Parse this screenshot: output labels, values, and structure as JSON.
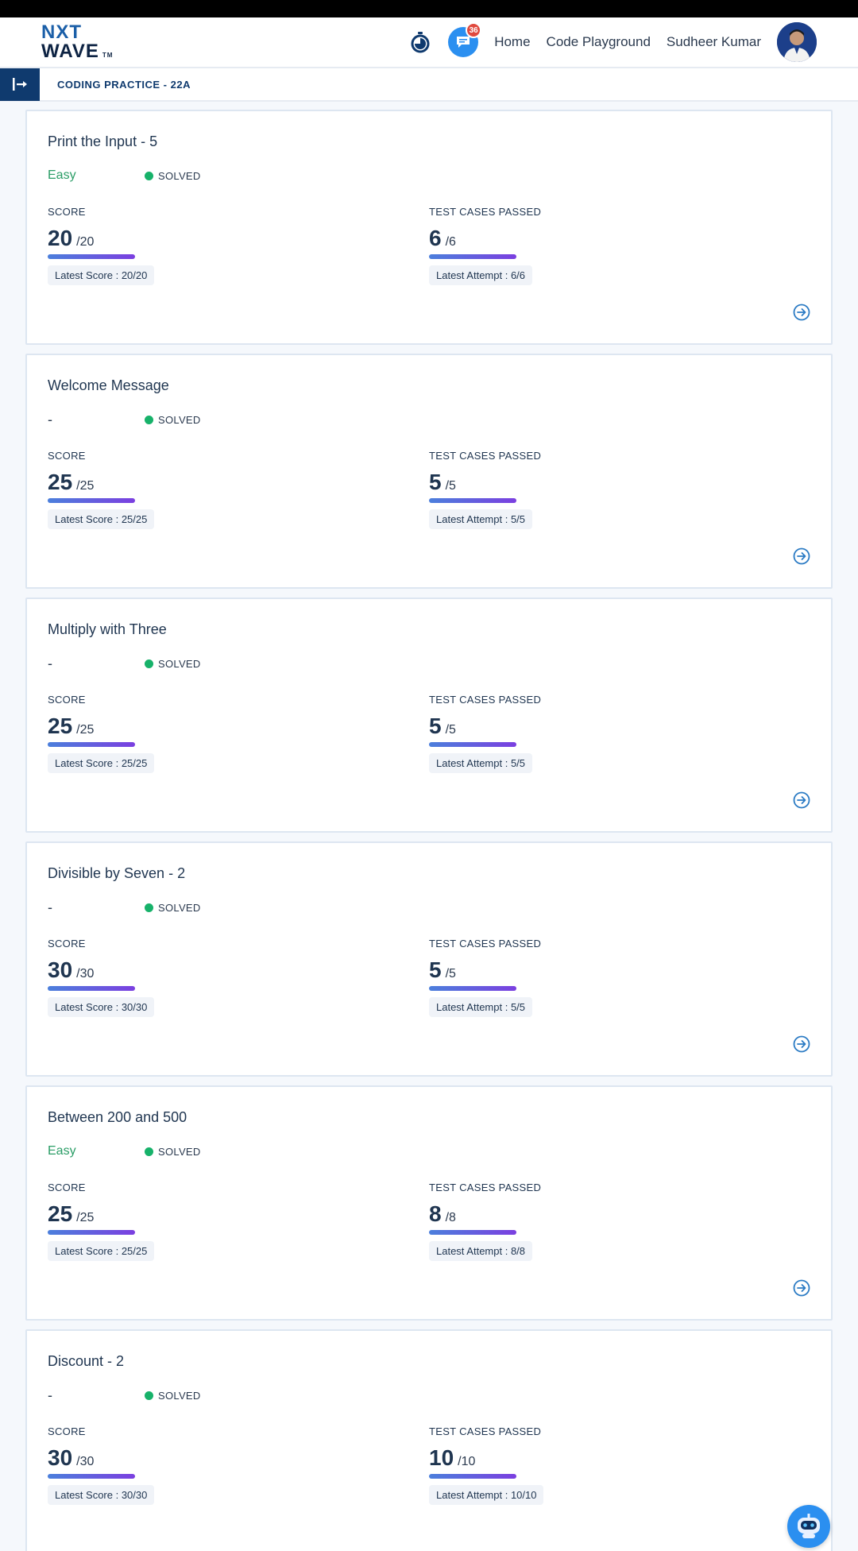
{
  "header": {
    "logo_line1": "NXT",
    "logo_line2": "WAVE",
    "logo_tm": "TM",
    "notification_count": "36",
    "nav_home": "Home",
    "nav_playground": "Code Playground",
    "user_name": "Sudheer Kumar"
  },
  "subheader": {
    "title": "CODING PRACTICE - 22A"
  },
  "labels": {
    "score": "SCORE",
    "tests": "TEST CASES PASSED",
    "status": "SOLVED"
  },
  "questions": [
    {
      "title": "Print the Input - 5",
      "difficulty": "Easy",
      "score": "20",
      "score_total": "/20",
      "tests": "6",
      "tests_total": "/6",
      "latest_score": "Latest Score : 20/20",
      "latest_attempt": "Latest Attempt : 6/6"
    },
    {
      "title": "Welcome Message",
      "difficulty": "-",
      "score": "25",
      "score_total": "/25",
      "tests": "5",
      "tests_total": "/5",
      "latest_score": "Latest Score : 25/25",
      "latest_attempt": "Latest Attempt : 5/5"
    },
    {
      "title": "Multiply with Three",
      "difficulty": "-",
      "score": "25",
      "score_total": "/25",
      "tests": "5",
      "tests_total": "/5",
      "latest_score": "Latest Score : 25/25",
      "latest_attempt": "Latest Attempt : 5/5"
    },
    {
      "title": "Divisible by Seven - 2",
      "difficulty": "-",
      "score": "30",
      "score_total": "/30",
      "tests": "5",
      "tests_total": "/5",
      "latest_score": "Latest Score : 30/30",
      "latest_attempt": "Latest Attempt : 5/5"
    },
    {
      "title": "Between 200 and 500",
      "difficulty": "Easy",
      "score": "25",
      "score_total": "/25",
      "tests": "8",
      "tests_total": "/8",
      "latest_score": "Latest Score : 25/25",
      "latest_attempt": "Latest Attempt : 8/8"
    },
    {
      "title": "Discount - 2",
      "difficulty": "-",
      "score": "30",
      "score_total": "/30",
      "tests": "10",
      "tests_total": "/10",
      "latest_score": "Latest Score : 30/30",
      "latest_attempt": "Latest Attempt : 10/10"
    }
  ],
  "colors": {
    "accent": "#0f3a6e",
    "solved": "#17b26a",
    "easy": "#2a9d66"
  }
}
